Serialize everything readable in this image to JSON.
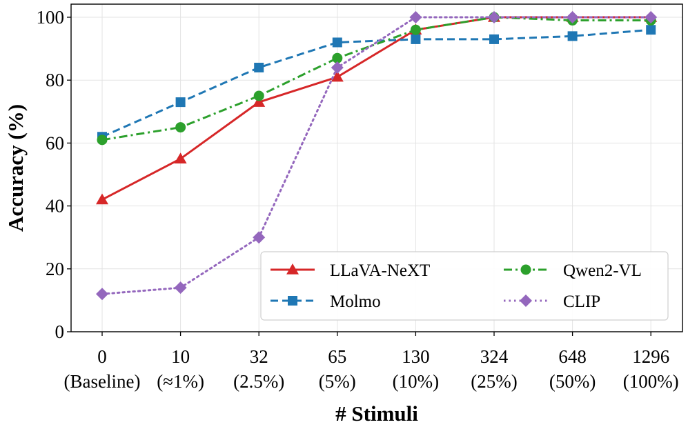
{
  "chart_data": {
    "type": "line",
    "title": "",
    "xlabel": "# Stimuli",
    "ylabel": "Accuracy (%)",
    "ylim": [
      0,
      100
    ],
    "yticks": [
      "0",
      "20",
      "40",
      "60",
      "80",
      "100"
    ],
    "categories": [
      {
        "top": "0",
        "bottom": "(Baseline)"
      },
      {
        "top": "10",
        "bottom": "(≈1%)"
      },
      {
        "top": "32",
        "bottom": "(2.5%)"
      },
      {
        "top": "65",
        "bottom": "(5%)"
      },
      {
        "top": "130",
        "bottom": "(10%)"
      },
      {
        "top": "324",
        "bottom": "(25%)"
      },
      {
        "top": "648",
        "bottom": "(50%)"
      },
      {
        "top": "1296",
        "bottom": "(100%)"
      }
    ],
    "grid": true,
    "legend_position": "bottom-right",
    "series": [
      {
        "name": "LLaVA-NeXT",
        "color": "#d62728",
        "marker": "triangle",
        "line_style": "solid",
        "values": [
          42,
          55,
          73,
          81,
          96,
          100,
          100,
          100
        ]
      },
      {
        "name": "Molmo",
        "color": "#1f77b4",
        "marker": "square",
        "line_style": "dashed",
        "values": [
          62,
          73,
          84,
          92,
          93,
          93,
          94,
          96
        ]
      },
      {
        "name": "Qwen2-VL",
        "color": "#2ca02c",
        "marker": "circle",
        "line_style": "dashdot",
        "values": [
          61,
          65,
          75,
          87,
          96,
          100,
          99,
          99
        ]
      },
      {
        "name": "CLIP",
        "color": "#9467bd",
        "marker": "diamond",
        "line_style": "dotted",
        "values": [
          12,
          14,
          30,
          84,
          100,
          100,
          100,
          100
        ]
      }
    ]
  }
}
